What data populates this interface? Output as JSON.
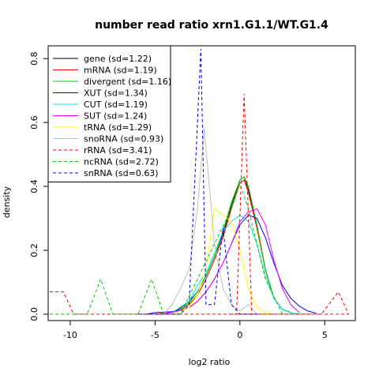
{
  "chart_data": {
    "type": "line",
    "title": "number read ratio xrn1.G1.1/WT.G1.4",
    "xlabel": "log2 ratio",
    "ylabel": "density",
    "xlim": [
      -11.3,
      6.8
    ],
    "ylim": [
      -0.02,
      0.84
    ],
    "xticks": [
      -10,
      -5,
      0,
      5
    ],
    "yticks": [
      0.0,
      0.2,
      0.4,
      0.6,
      0.8
    ],
    "xtick_labels": [
      "-10",
      "-5",
      "0",
      "5"
    ],
    "ytick_labels": [
      "0.0",
      "0.2",
      "0.4",
      "0.6",
      "0.8"
    ],
    "legend_position": "top-left",
    "series": [
      {
        "name": "gene (sd=1.22)",
        "color": "#000000",
        "dash": "solid",
        "x": [
          -5,
          -4,
          -3.5,
          -3,
          -2.5,
          -2,
          -1.5,
          -1,
          -0.5,
          0,
          0.25,
          0.5,
          1,
          1.5,
          2,
          2.5,
          3
        ],
        "y": [
          0,
          0.005,
          0.02,
          0.04,
          0.07,
          0.12,
          0.18,
          0.25,
          0.34,
          0.42,
          0.43,
          0.39,
          0.28,
          0.14,
          0.05,
          0.015,
          0.005
        ]
      },
      {
        "name": "mRNA (sd=1.19)",
        "color": "#ff0000",
        "dash": "solid",
        "x": [
          -4,
          -3.5,
          -3,
          -2.5,
          -2,
          -1.5,
          -1,
          -0.5,
          0,
          0.25,
          0.5,
          1,
          1.5,
          2,
          2.5,
          3
        ],
        "y": [
          0.005,
          0.015,
          0.03,
          0.06,
          0.11,
          0.17,
          0.24,
          0.33,
          0.41,
          0.42,
          0.38,
          0.27,
          0.14,
          0.05,
          0.015,
          0.005
        ]
      },
      {
        "name": "divergent (sd=1.16)",
        "color": "#00cd00",
        "dash": "solid",
        "x": [
          -4,
          -3.5,
          -3,
          -2.5,
          -2,
          -1.5,
          -1,
          -0.5,
          0,
          0.25,
          0.5,
          1,
          1.5,
          2,
          2.5,
          3
        ],
        "y": [
          0.005,
          0.015,
          0.035,
          0.07,
          0.12,
          0.18,
          0.26,
          0.35,
          0.42,
          0.43,
          0.4,
          0.28,
          0.14,
          0.05,
          0.015,
          0.005
        ]
      },
      {
        "name": "XUT (sd=1.34)",
        "color": "#0000ff",
        "dash": "solid",
        "x": [
          -5.5,
          -5,
          -4,
          -3,
          -2.5,
          -2,
          -1.5,
          -1,
          -0.5,
          0,
          0.5,
          1,
          1.5,
          2,
          2.5,
          3,
          3.5,
          4,
          4.5
        ],
        "y": [
          0,
          0.005,
          0.008,
          0.02,
          0.04,
          0.07,
          0.11,
          0.16,
          0.22,
          0.28,
          0.31,
          0.3,
          0.24,
          0.16,
          0.09,
          0.05,
          0.025,
          0.01,
          0.003
        ]
      },
      {
        "name": "CUT (sd=1.19)",
        "color": "#00e5ee",
        "dash": "solid",
        "x": [
          -4,
          -3,
          -2.5,
          -2,
          -1.5,
          -1,
          -0.5,
          0,
          0.5,
          1,
          1.5,
          2,
          2.5,
          3,
          3.5
        ],
        "y": [
          0.005,
          0.04,
          0.09,
          0.13,
          0.19,
          0.26,
          0.29,
          0.31,
          0.29,
          0.22,
          0.12,
          0.05,
          0.015,
          0.004,
          0
        ]
      },
      {
        "name": "SUT (sd=1.24)",
        "color": "#ff00ff",
        "dash": "solid",
        "x": [
          -5,
          -4,
          -3,
          -2.5,
          -2,
          -1.5,
          -1,
          -0.5,
          0,
          0.5,
          1,
          1.5,
          2,
          2.5,
          3,
          3.5
        ],
        "y": [
          0,
          0.005,
          0.02,
          0.04,
          0.07,
          0.11,
          0.16,
          0.22,
          0.29,
          0.32,
          0.33,
          0.28,
          0.17,
          0.08,
          0.03,
          0.005
        ]
      },
      {
        "name": "tRNA (sd=1.29)",
        "color": "#ffff00",
        "dash": "solid",
        "x": [
          -4,
          -3,
          -2.5,
          -2,
          -1.5,
          -1,
          -0.5,
          0,
          0.5,
          1,
          1.5,
          2
        ],
        "y": [
          0,
          0.02,
          0.06,
          0.14,
          0.33,
          0.31,
          0.29,
          0.2,
          0.08,
          0.02,
          0.005,
          0
        ]
      },
      {
        "name": "snoRNA (sd=0.93)",
        "color": "#bebebe",
        "dash": "solid",
        "x": [
          -4.5,
          -4,
          -3.5,
          -3,
          -2.5,
          -2.1,
          -1.8,
          -1.5,
          -1,
          -0.5,
          0,
          0.5,
          1
        ],
        "y": [
          0,
          0.03,
          0.08,
          0.14,
          0.33,
          0.58,
          0.4,
          0.22,
          0.08,
          0.03,
          0.01,
          0.03,
          0
        ]
      },
      {
        "name": "rRNA (sd=3.41)",
        "color": "#ff0000",
        "dash": "dashed",
        "x": [
          -11.2,
          -10.4,
          -9.8,
          4.8,
          5.8,
          6.4,
          -0.5,
          -0.2,
          0.25,
          0.7,
          1.0
        ],
        "y": [
          0.07,
          0.07,
          0.0,
          0.0,
          0.07,
          0.0,
          0.0,
          0.0,
          0.69,
          0.0,
          0.0
        ]
      },
      {
        "name": "ncRNA (sd=2.72)",
        "color": "#00cd00",
        "dash": "dashed",
        "x": [
          -11.2,
          -9,
          -8.2,
          -7.5,
          -6,
          -5.2,
          -4.5,
          -3.5,
          -2.5,
          -1.5,
          -0.5,
          0,
          0.5,
          1.5,
          2.5
        ],
        "y": [
          0,
          0,
          0.11,
          0,
          0,
          0.11,
          0,
          0,
          0.11,
          0.22,
          0.33,
          0.41,
          0.33,
          0.11,
          0
        ]
      },
      {
        "name": "snRNA (sd=0.63)",
        "color": "#0000ff",
        "dash": "dashed",
        "x": [
          -6,
          -3.5,
          -3,
          -2.3,
          -2,
          -1.5,
          -1,
          -0.5,
          0,
          0.5,
          1
        ],
        "y": [
          0,
          0,
          0.03,
          0.83,
          0.03,
          0.03,
          0.27,
          0.03,
          0,
          0,
          0
        ]
      }
    ]
  }
}
